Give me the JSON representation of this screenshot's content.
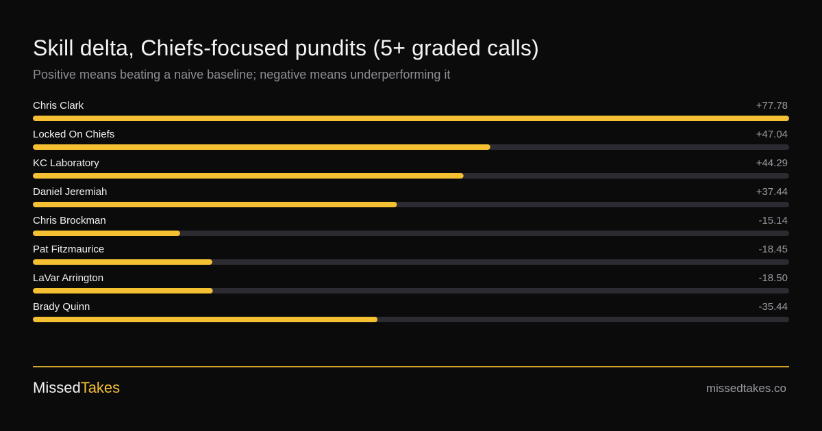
{
  "header": {
    "title": "Skill delta, Chiefs-focused pundits (5+ graded calls)",
    "subtitle": "Positive means beating a naive baseline; negative means underperforming it"
  },
  "colors": {
    "accent": "#f5c032",
    "track": "#2c2b31",
    "background": "#0b0b0c"
  },
  "chart_data": {
    "type": "bar",
    "orientation": "horizontal",
    "title": "Skill delta, Chiefs-focused pundits (5+ graded calls)",
    "subtitle": "Positive means beating a naive baseline; negative means underperforming it",
    "categories": [
      "Chris Clark",
      "Locked On Chiefs",
      "KC Laboratory",
      "Daniel Jeremiah",
      "Chris Brockman",
      "Pat Fitzmaurice",
      "LaVar Arrington",
      "Brady Quinn"
    ],
    "values": [
      77.78,
      47.04,
      44.29,
      37.44,
      -15.14,
      -18.45,
      -18.5,
      -35.44
    ],
    "value_labels": [
      "+77.78",
      "+47.04",
      "+44.29",
      "+37.44",
      "-15.14",
      "-18.45",
      "-18.50",
      "-35.44"
    ],
    "bar_length_encoding": "absolute value relative to maximum absolute value",
    "grid": false,
    "legend": "none"
  },
  "footer": {
    "brand_part1": "Missed",
    "brand_part2": "Takes",
    "site": "missedtakes.co"
  }
}
